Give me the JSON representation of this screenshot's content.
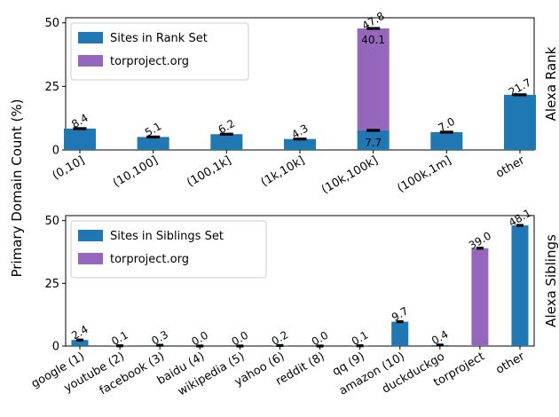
{
  "ylabel": "Primary Domain Count (%)",
  "colors": {
    "sites": "#1f77b4",
    "torproject": "#9467bd"
  },
  "chart_data": [
    {
      "type": "bar",
      "stacked": true,
      "side_label": "Alexa Rank",
      "categories": [
        "(0,10]",
        "(10,100]",
        "(100,1k]",
        "(1k,10k]",
        "(10k,100k]",
        "(100k,1m]",
        "other"
      ],
      "series": [
        {
          "name": "Sites in Rank Set",
          "values": [
            8.4,
            5.1,
            6.2,
            4.3,
            7.7,
            7.0,
            21.7
          ]
        },
        {
          "name": "torproject.org",
          "values": [
            0,
            0,
            0,
            0,
            40.1,
            0,
            0
          ]
        }
      ],
      "top_labels": [
        "8.4",
        "5.1",
        "6.2",
        "4.3",
        "47.8",
        "7.0",
        "21.7"
      ],
      "inner_labels": [
        {
          "category": "(10k,100k]",
          "text": "40.1",
          "position": "upper"
        },
        {
          "category": "(10k,100k]",
          "text": "7.7",
          "position": "lower"
        }
      ],
      "yticks": [
        0,
        25,
        50
      ],
      "ylim": [
        0,
        52
      ],
      "legend": "top-left"
    },
    {
      "type": "bar",
      "stacked": true,
      "side_label": "Alexa Siblings",
      "categories": [
        "google (1)",
        "youtube (2)",
        "facebook (3)",
        "baidu (4)",
        "wikipedia (5)",
        "yahoo (6)",
        "reddit (8)",
        "qq (9)",
        "amazon (10)",
        "duckduckgo",
        "torproject",
        "other"
      ],
      "series": [
        {
          "name": "Sites in Siblings Set",
          "values": [
            2.4,
            0.1,
            0.3,
            0.0,
            0.0,
            0.2,
            0.0,
            0.1,
            9.7,
            0.4,
            0,
            48.1
          ]
        },
        {
          "name": "torproject.org",
          "values": [
            0,
            0,
            0,
            0,
            0,
            0,
            0,
            0,
            0,
            0,
            39.0,
            0
          ]
        }
      ],
      "top_labels": [
        "2.4",
        "0.1",
        "0.3",
        "0.0",
        "0.0",
        "0.2",
        "0.0",
        "0.1",
        "9.7",
        "0.4",
        "39.0",
        "48.1"
      ],
      "yticks": [
        0,
        25,
        50
      ],
      "ylim": [
        0,
        52
      ],
      "legend": "top-left"
    }
  ]
}
